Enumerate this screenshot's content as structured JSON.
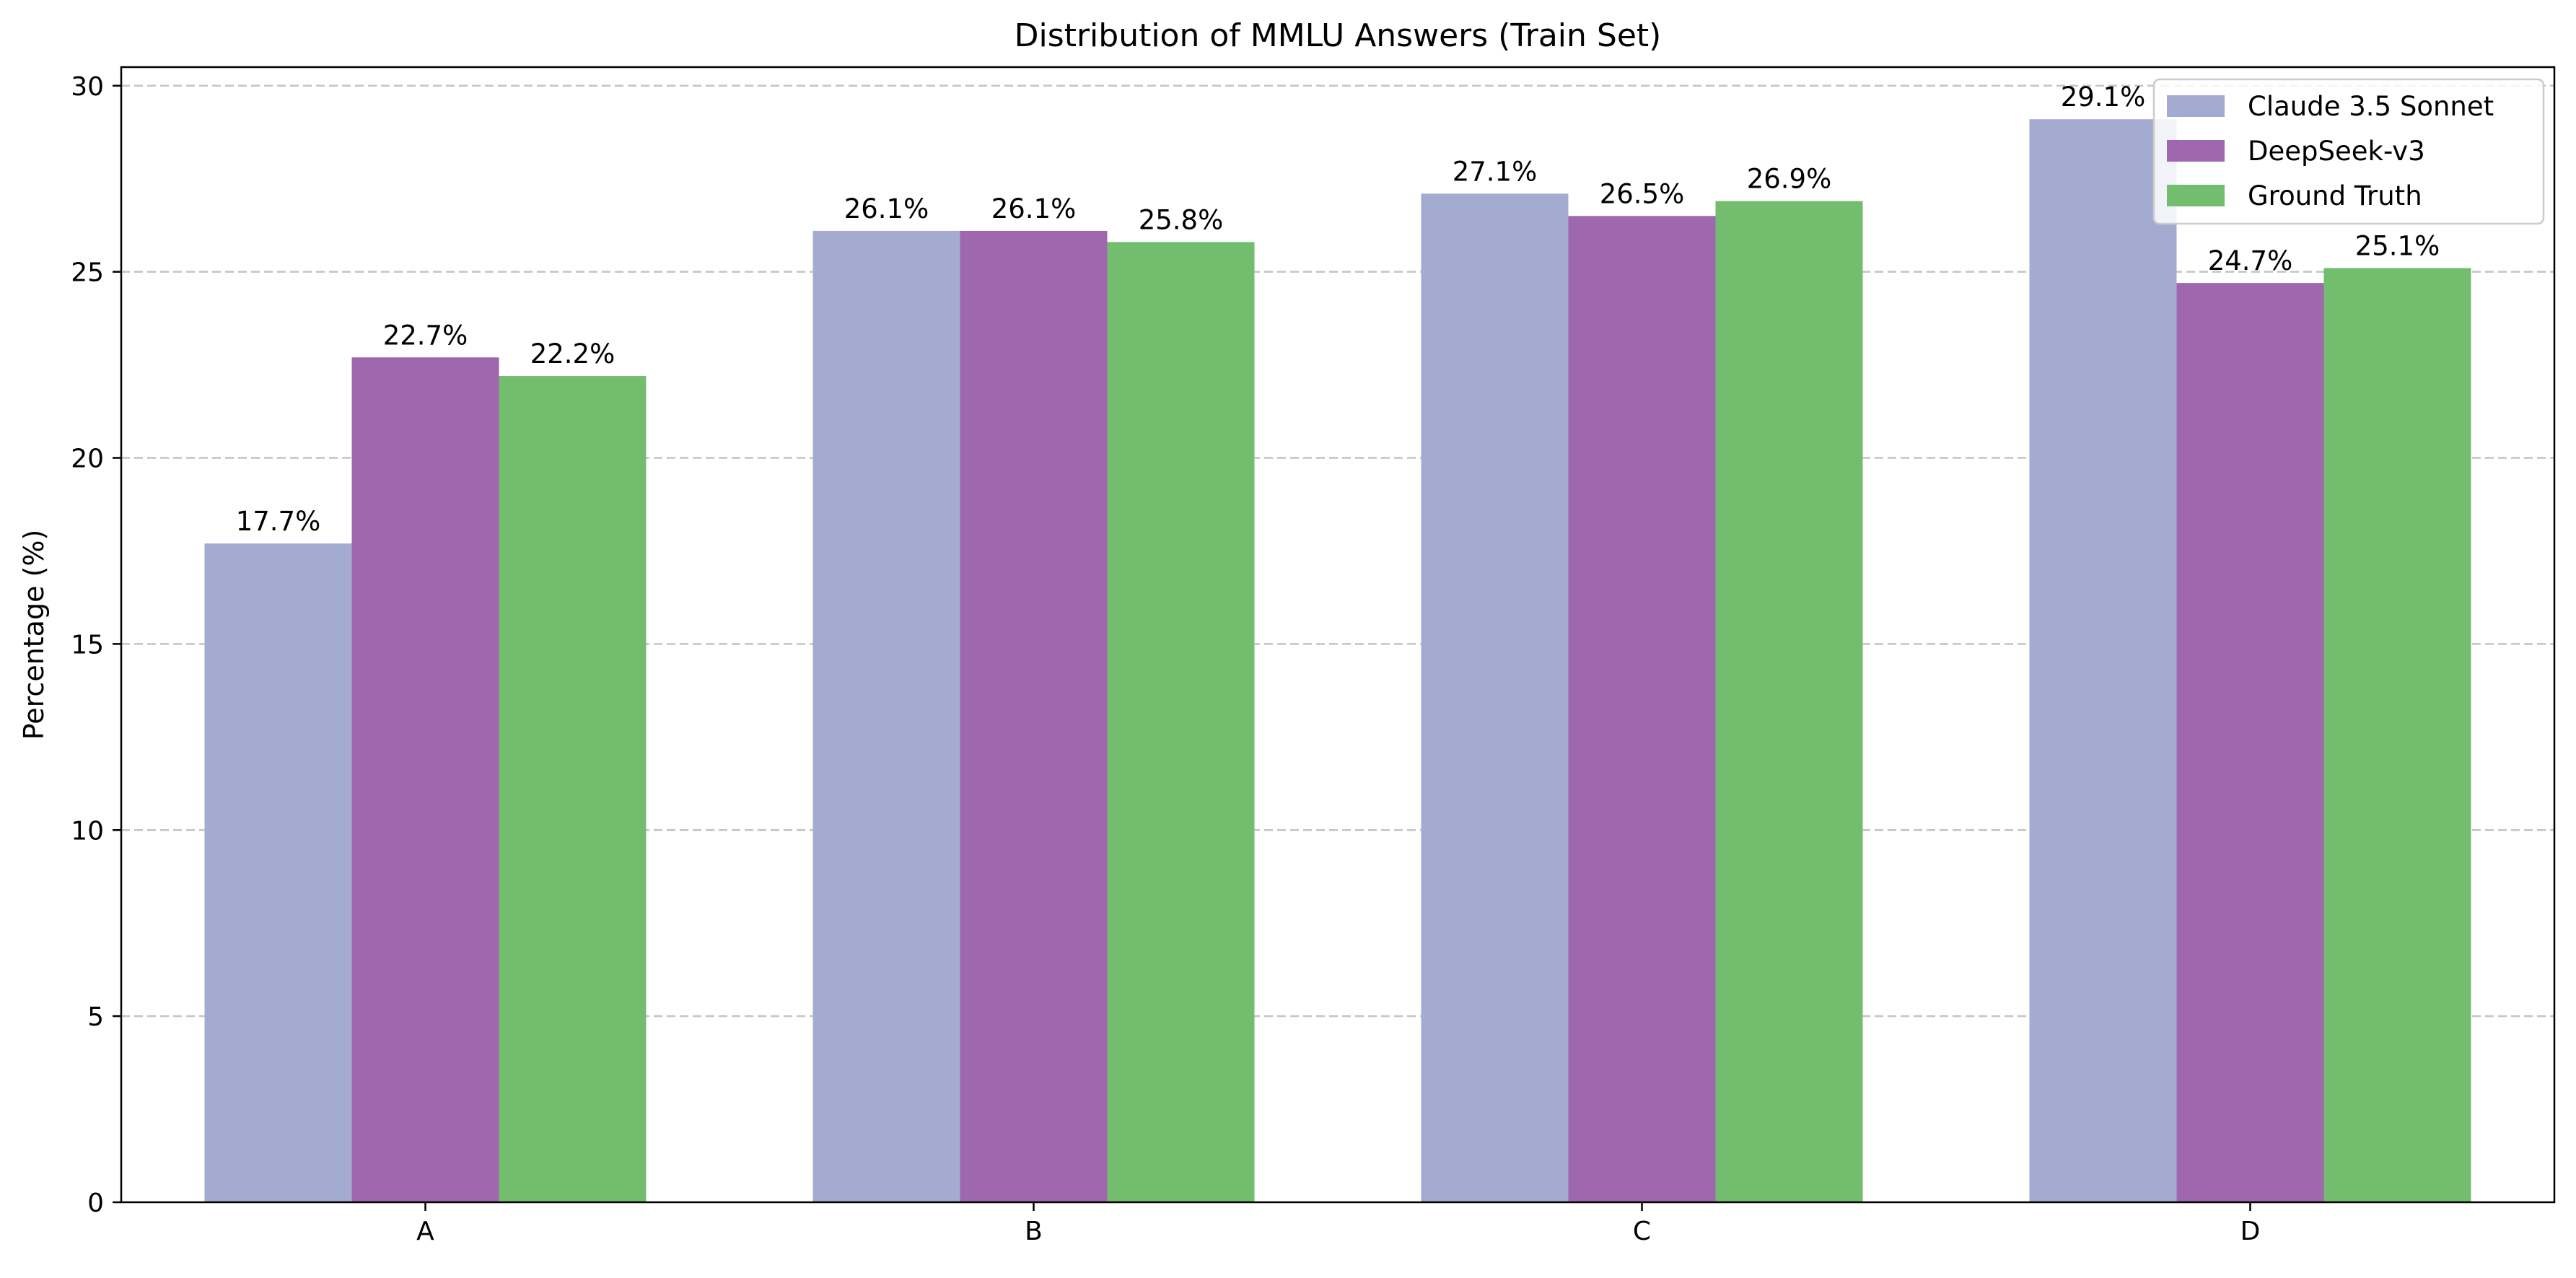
{
  "chart_data": {
    "type": "bar",
    "title": "Distribution of MMLU Answers (Train Set)",
    "xlabel": "",
    "ylabel": "Percentage (%)",
    "categories": [
      "A",
      "B",
      "C",
      "D"
    ],
    "ylim": [
      0,
      30.5
    ],
    "yticks": [
      0,
      5,
      10,
      15,
      20,
      25,
      30
    ],
    "grid": "horizontal dashed",
    "legend_position": "top-right",
    "series": [
      {
        "name": "Claude 3.5 Sonnet",
        "color": "#a3acd0",
        "values": [
          17.7,
          26.1,
          27.1,
          29.1
        ],
        "labels": [
          "17.7%",
          "26.1%",
          "27.1%",
          "29.1%"
        ]
      },
      {
        "name": "DeepSeek-v3",
        "color": "#9e67ae",
        "values": [
          22.7,
          26.1,
          26.5,
          24.7
        ],
        "labels": [
          "22.7%",
          "26.1%",
          "26.5%",
          "24.7%"
        ]
      },
      {
        "name": "Ground Truth",
        "color": "#73bd6e",
        "values": [
          22.2,
          25.8,
          26.9,
          25.1
        ],
        "labels": [
          "22.2%",
          "25.8%",
          "26.9%",
          "25.1%"
        ]
      }
    ]
  }
}
